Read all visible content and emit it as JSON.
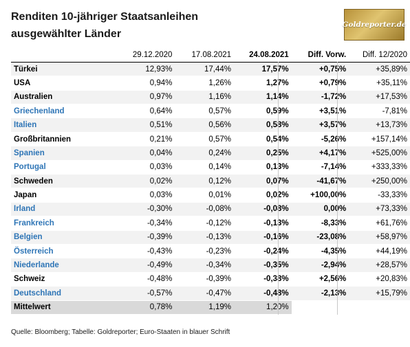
{
  "title": {
    "line1": "Renditen 10-jähriger Staatsanleihen",
    "line2": "ausgewählter Länder"
  },
  "logo": {
    "text": "Goldreporter.de"
  },
  "table": {
    "headers": [
      "",
      "29.12.2020",
      "17.08.2021",
      "24.08.2021",
      "Diff. Vorw.",
      "Diff. 12/2020"
    ],
    "rows": [
      {
        "country": "Türkei",
        "euro": false,
        "v1": "12,93%",
        "v2": "17,44%",
        "v3": "17,57%",
        "diff_w": "+0,75%",
        "diff_y": "+35,89%"
      },
      {
        "country": "USA",
        "euro": false,
        "v1": "0,94%",
        "v2": "1,26%",
        "v3": "1,27%",
        "diff_w": "+0,79%",
        "diff_y": "+35,11%"
      },
      {
        "country": "Australien",
        "euro": false,
        "v1": "0,97%",
        "v2": "1,16%",
        "v3": "1,14%",
        "diff_w": "-1,72%",
        "diff_y": "+17,53%"
      },
      {
        "country": "Griechenland",
        "euro": true,
        "v1": "0,64%",
        "v2": "0,57%",
        "v3": "0,59%",
        "diff_w": "+3,51%",
        "diff_y": "-7,81%"
      },
      {
        "country": "Italien",
        "euro": true,
        "v1": "0,51%",
        "v2": "0,56%",
        "v3": "0,58%",
        "diff_w": "+3,57%",
        "diff_y": "+13,73%"
      },
      {
        "country": "Großbritannien",
        "euro": false,
        "v1": "0,21%",
        "v2": "0,57%",
        "v3": "0,54%",
        "diff_w": "-5,26%",
        "diff_y": "+157,14%"
      },
      {
        "country": "Spanien",
        "euro": true,
        "v1": "0,04%",
        "v2": "0,24%",
        "v3": "0,25%",
        "diff_w": "+4,17%",
        "diff_y": "+525,00%"
      },
      {
        "country": "Portugal",
        "euro": true,
        "v1": "0,03%",
        "v2": "0,14%",
        "v3": "0,13%",
        "diff_w": "-7,14%",
        "diff_y": "+333,33%"
      },
      {
        "country": "Schweden",
        "euro": false,
        "v1": "0,02%",
        "v2": "0,12%",
        "v3": "0,07%",
        "diff_w": "-41,67%",
        "diff_y": "+250,00%"
      },
      {
        "country": "Japan",
        "euro": false,
        "v1": "0,03%",
        "v2": "0,01%",
        "v3": "0,02%",
        "diff_w": "+100,00%",
        "diff_y": "-33,33%"
      },
      {
        "country": "Irland",
        "euro": true,
        "v1": "-0,30%",
        "v2": "-0,08%",
        "v3": "-0,08%",
        "diff_w": "0,00%",
        "diff_y": "+73,33%"
      },
      {
        "country": "Frankreich",
        "euro": true,
        "v1": "-0,34%",
        "v2": "-0,12%",
        "v3": "-0,13%",
        "diff_w": "-8,33%",
        "diff_y": "+61,76%"
      },
      {
        "country": "Belgien",
        "euro": true,
        "v1": "-0,39%",
        "v2": "-0,13%",
        "v3": "-0,16%",
        "diff_w": "-23,08%",
        "diff_y": "+58,97%"
      },
      {
        "country": "Österreich",
        "euro": true,
        "v1": "-0,43%",
        "v2": "-0,23%",
        "v3": "-0,24%",
        "diff_w": "-4,35%",
        "diff_y": "+44,19%"
      },
      {
        "country": "Niederlande",
        "euro": true,
        "v1": "-0,49%",
        "v2": "-0,34%",
        "v3": "-0,35%",
        "diff_w": "-2,94%",
        "diff_y": "+28,57%"
      },
      {
        "country": "Schweiz",
        "euro": false,
        "v1": "-0,48%",
        "v2": "-0,39%",
        "v3": "-0,38%",
        "diff_w": "+2,56%",
        "diff_y": "+20,83%"
      },
      {
        "country": "Deutschland",
        "euro": true,
        "v1": "-0,57%",
        "v2": "-0,47%",
        "v3": "-0,48%",
        "diff_w": "-2,13%",
        "diff_y": "+15,79%"
      }
    ],
    "average": {
      "label": "Mittelwert",
      "v1": "0,78%",
      "v2": "1,19%",
      "v3": "1,20%"
    }
  },
  "source": "Quelle: Bloomberg; Tabelle: Goldreporter; Euro-Staaten in blauer Schrift",
  "colors": {
    "euro_text": "#2e75b6",
    "stripe": "#f2f2f2",
    "average_bg": "#d9d9d9",
    "logo_gold": "#c9a64b"
  }
}
